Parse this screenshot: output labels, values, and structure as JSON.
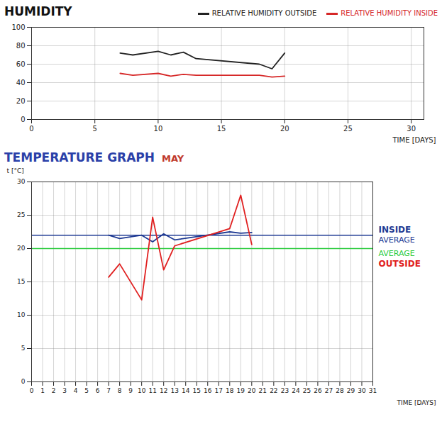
{
  "chart_data": [
    {
      "type": "line",
      "title": "HUMIDITY",
      "title_color": "#111111",
      "x": [
        7,
        8,
        10,
        11,
        12,
        13,
        18,
        19,
        20
      ],
      "series": [
        {
          "name": "RELATIVE HUMIDITY OUTSIDE",
          "color": "#222222",
          "values": [
            72,
            70,
            74,
            70,
            73,
            66,
            60,
            55,
            72
          ]
        },
        {
          "name": "RELATIVE HUMIDITY INSIDE",
          "color": "#d62828",
          "values": [
            50,
            48,
            50,
            47,
            49,
            48,
            48,
            46,
            47
          ]
        }
      ],
      "xlim": [
        0,
        31
      ],
      "xticks": [
        0,
        5,
        10,
        15,
        20,
        25,
        30
      ],
      "ylim": [
        0,
        100
      ],
      "yticks": [
        0,
        20,
        40,
        60,
        80,
        100
      ],
      "xlabel": "TIME [DAYS]",
      "grid": true,
      "legend": "top"
    },
    {
      "type": "line",
      "title": "TEMPERATURE GRAPH",
      "subtitle": "MAY",
      "title_color": "#2a3fa8",
      "x": [
        7,
        8,
        10,
        11,
        12,
        13,
        18,
        19,
        20
      ],
      "series": [
        {
          "name": "INSIDE",
          "color": "#1f3a93",
          "values": [
            22,
            21.5,
            22,
            21,
            22.2,
            21.3,
            22.5,
            22.3,
            22.4
          ],
          "average": 22,
          "average_label": "AVERAGE",
          "average_color": "#1f3a93"
        },
        {
          "name": "OUTSIDE",
          "color": "#e02020",
          "values": [
            15.7,
            17.7,
            12.3,
            24.7,
            16.8,
            20.4,
            23,
            28,
            20.6
          ],
          "average": 20,
          "average_label": "AVERAGE",
          "average_color": "#2ecc40"
        }
      ],
      "xlim": [
        0,
        31
      ],
      "xticks": [
        0,
        1,
        2,
        3,
        4,
        5,
        6,
        7,
        8,
        9,
        10,
        11,
        12,
        13,
        14,
        15,
        16,
        17,
        18,
        19,
        20,
        21,
        22,
        23,
        24,
        25,
        26,
        27,
        28,
        29,
        30,
        31
      ],
      "ylim": [
        0,
        30
      ],
      "yticks": [
        0,
        5,
        10,
        15,
        20,
        25,
        30
      ],
      "xlabel": "TIME [DAYS]",
      "ylabel": "t [°C]",
      "grid": true
    }
  ]
}
